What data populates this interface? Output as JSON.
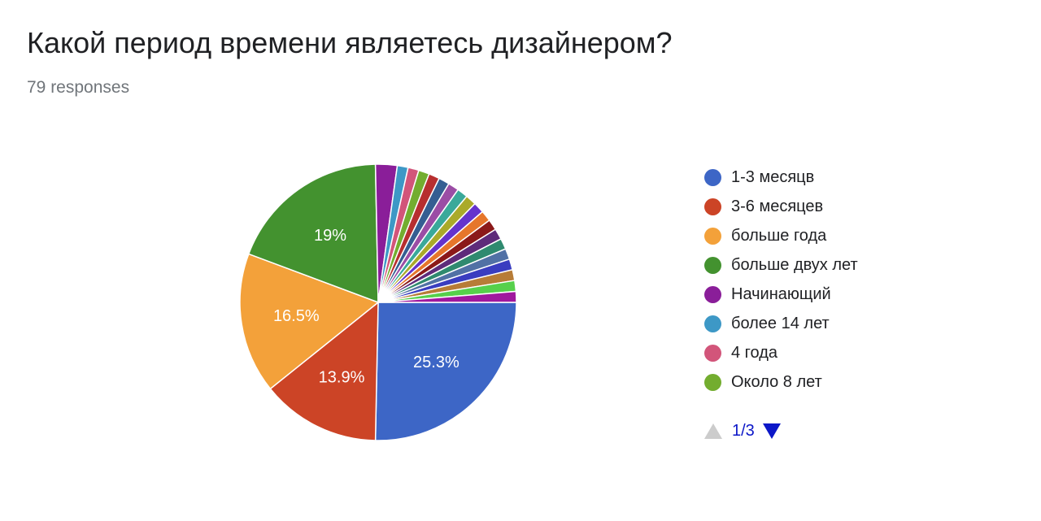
{
  "header": {
    "title": "Какой период времени являетесь дизайнером?",
    "responses": "79 responses"
  },
  "legend": {
    "items": [
      {
        "label": "1-3 месяцв",
        "color": "#3d66c6"
      },
      {
        "label": "3-6 месяцев",
        "color": "#cc4426"
      },
      {
        "label": "больше года",
        "color": "#f3a13a"
      },
      {
        "label": "больше двух лет",
        "color": "#43922f"
      },
      {
        "label": "Начинающий",
        "color": "#8a1e99"
      },
      {
        "label": "более 14 лет",
        "color": "#3d98c6"
      },
      {
        "label": "4 года",
        "color": "#d2557a"
      },
      {
        "label": "Около 8 лет",
        "color": "#73ad2f"
      }
    ],
    "pager": {
      "text": "1/3",
      "up_icon": "triangle-up-icon",
      "down_icon": "triangle-down-icon"
    }
  },
  "chart_data": {
    "type": "pie",
    "total": 79,
    "slices": [
      {
        "label": "1-3 месяцв",
        "value": 20,
        "percent_label": "25.3%",
        "color": "#3d66c6"
      },
      {
        "label": "3-6 месяцев",
        "value": 11,
        "percent_label": "13.9%",
        "color": "#cc4426"
      },
      {
        "label": "больше года",
        "value": 13,
        "percent_label": "16.5%",
        "color": "#f3a13a"
      },
      {
        "label": "больше двух лет",
        "value": 15,
        "percent_label": "19%",
        "color": "#43922f"
      },
      {
        "label": "Начинающий",
        "value": 2,
        "percent_label": "",
        "color": "#8a1e99"
      },
      {
        "label": "более 14 лет",
        "value": 1,
        "percent_label": "",
        "color": "#3d98c6"
      },
      {
        "label": "4 года",
        "value": 1,
        "percent_label": "",
        "color": "#d2557a"
      },
      {
        "label": "Около 8 лет",
        "value": 1,
        "percent_label": "",
        "color": "#73ad2f"
      },
      {
        "label": "",
        "value": 1,
        "percent_label": "",
        "color": "#b72f2f"
      },
      {
        "label": "",
        "value": 1,
        "percent_label": "",
        "color": "#355e92"
      },
      {
        "label": "",
        "value": 1,
        "percent_label": "",
        "color": "#9b4da5"
      },
      {
        "label": "",
        "value": 1,
        "percent_label": "",
        "color": "#3aa99a"
      },
      {
        "label": "",
        "value": 1,
        "percent_label": "",
        "color": "#aaaa2a"
      },
      {
        "label": "",
        "value": 1,
        "percent_label": "",
        "color": "#6433cc"
      },
      {
        "label": "",
        "value": 1,
        "percent_label": "",
        "color": "#e6762b"
      },
      {
        "label": "",
        "value": 1,
        "percent_label": "",
        "color": "#8b1919"
      },
      {
        "label": "",
        "value": 1,
        "percent_label": "",
        "color": "#5e2b7a"
      },
      {
        "label": "",
        "value": 1,
        "percent_label": "",
        "color": "#2f8a6f"
      },
      {
        "label": "",
        "value": 1,
        "percent_label": "",
        "color": "#5171a5"
      },
      {
        "label": "",
        "value": 1,
        "percent_label": "",
        "color": "#3a3dc0"
      },
      {
        "label": "",
        "value": 1,
        "percent_label": "",
        "color": "#b77c37"
      },
      {
        "label": "",
        "value": 1,
        "percent_label": "",
        "color": "#56d04b"
      },
      {
        "label": "",
        "value": 1,
        "percent_label": "",
        "color": "#a0189e"
      }
    ]
  }
}
